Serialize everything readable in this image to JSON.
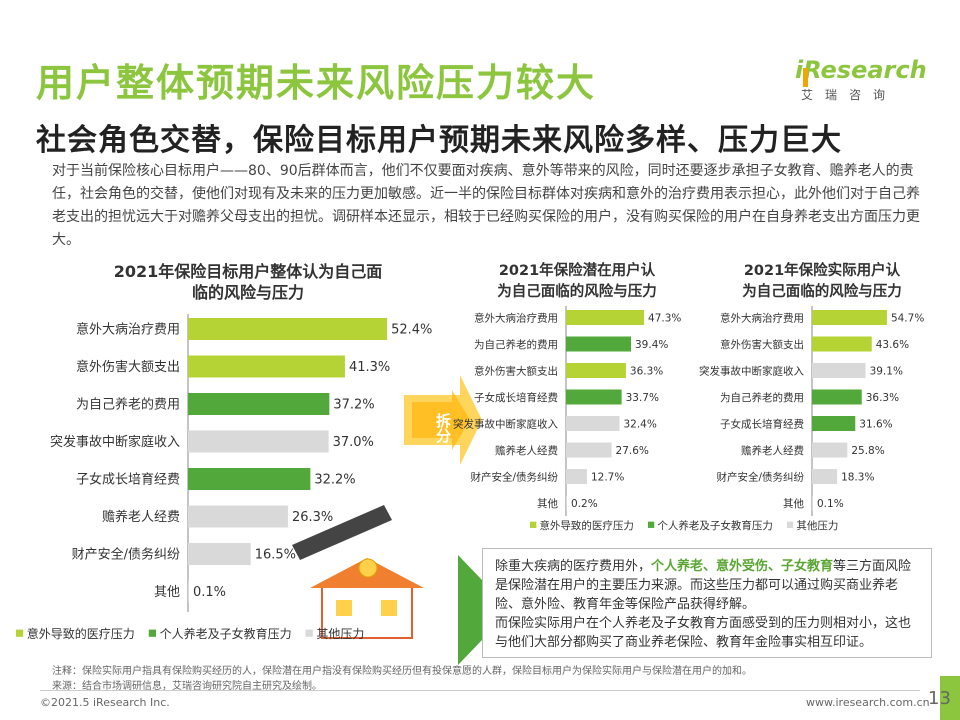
{
  "title": "用户整体预期未来风险压力较大",
  "subtitle": "社会角色交替，保险目标用户预期未来风险多样、压力巨大",
  "intro": "对于当前保险核心目标用户——80、90后群体而言，他们不仅要面对疾病、意外等带来的风险，同时还要逐步承担子女教育、赡养老人的责任，社会角色的交替，使他们对现有及未来的压力更加敏感。近一半的保险目标群体对疾病和意外的治疗费用表示担心，此外他们对于自己养老支出的担忧远大于对赡养父母支出的担忧。调研样本还显示，相较于已经购买保险的用户，没有购买保险的用户在自身养老支出方面压力更大。",
  "logo": {
    "main": "iResearch",
    "sub": "艾瑞咨询"
  },
  "arrow_label": "拆分",
  "colors": {
    "accident": "#b5d334",
    "family": "#52a83a",
    "other": "#d9d9d9"
  },
  "chart_data": [
    {
      "type": "bar",
      "orientation": "horizontal",
      "title": "2021年保险目标用户整体认为自己面临的风险与压力",
      "categories": [
        "意外大病治疗费用",
        "意外伤害大额支出",
        "为自己养老的费用",
        "突发事故中断家庭收入",
        "子女成长培育经费",
        "赡养老人经费",
        "财产安全/债务纠纷",
        "其他"
      ],
      "values": [
        52.4,
        41.3,
        37.2,
        37.0,
        32.2,
        26.3,
        16.5,
        0.1
      ],
      "labels": [
        "52.4%",
        "41.3%",
        "37.2%",
        "37.0%",
        "32.2%",
        "26.3%",
        "16.5%",
        "0.1%"
      ],
      "groups": [
        "accident",
        "accident",
        "family",
        "other",
        "family",
        "other",
        "other",
        "other"
      ],
      "xlim": [
        0,
        60
      ]
    },
    {
      "type": "bar",
      "orientation": "horizontal",
      "title": "2021年保险潜在用户认为自己面临的风险与压力",
      "categories": [
        "意外大病治疗费用",
        "为自己养老的费用",
        "意外伤害大额支出",
        "子女成长培育经费",
        "突发事故中断家庭收入",
        "赡养老人经费",
        "财产安全/债务纠纷",
        "其他"
      ],
      "values": [
        47.3,
        39.4,
        36.3,
        33.7,
        32.4,
        27.6,
        12.7,
        0.2
      ],
      "labels": [
        "47.3%",
        "39.4%",
        "36.3%",
        "33.7%",
        "32.4%",
        "27.6%",
        "12.7%",
        "0.2%"
      ],
      "groups": [
        "accident",
        "family",
        "accident",
        "family",
        "other",
        "other",
        "other",
        "other"
      ],
      "xlim": [
        0,
        60
      ]
    },
    {
      "type": "bar",
      "orientation": "horizontal",
      "title": "2021年保险实际用户认为自己面临的风险与压力",
      "categories": [
        "意外大病治疗费用",
        "意外伤害大额支出",
        "突发事故中断家庭收入",
        "为自己养老的费用",
        "子女成长培育经费",
        "赡养老人经费",
        "财产安全/债务纠纷",
        "其他"
      ],
      "values": [
        54.7,
        43.6,
        39.1,
        36.3,
        31.6,
        25.8,
        18.3,
        0.1
      ],
      "labels": [
        "54.7%",
        "43.6%",
        "39.1%",
        "36.3%",
        "31.6%",
        "25.8%",
        "18.3%",
        "0.1%"
      ],
      "groups": [
        "accident",
        "accident",
        "other",
        "family",
        "family",
        "other",
        "other",
        "other"
      ],
      "xlim": [
        0,
        60
      ]
    }
  ],
  "legend": [
    {
      "key": "accident",
      "label": "意外导致的医疗压力"
    },
    {
      "key": "family",
      "label": "个人养老及子女教育压力"
    },
    {
      "key": "other",
      "label": "其他压力"
    }
  ],
  "callout": {
    "p1_pre": "除重大疾病的医疗费用外，",
    "p1_hl": "个人养老、意外受伤、子女教育",
    "p1_post": "等三方面风险是保险潜在用户的主要压力来源。而这些压力都可以通过购买商业养老险、意外险、教育年金等保险产品获得纾解。",
    "p2": "而保险实际用户在个人养老及子女教育方面感受到的压力则相对小，这也与他们大部分都购买了商业养老保险、教育年金险事实相互印证。"
  },
  "note1": "注释：保险实际用户指具有保险购买经历的人，保险潜在用户指没有保险购买经历但有投保意愿的人群，保险目标用户为保险实际用户与保险潜在用户的加和。",
  "note2": "来源：结合市场调研信息，艾瑞咨询研究院自主研究及绘制。",
  "footer_left": "©2021.5 iResearch Inc.",
  "footer_right": "www.iresearch.com.cn",
  "page_number": "13"
}
